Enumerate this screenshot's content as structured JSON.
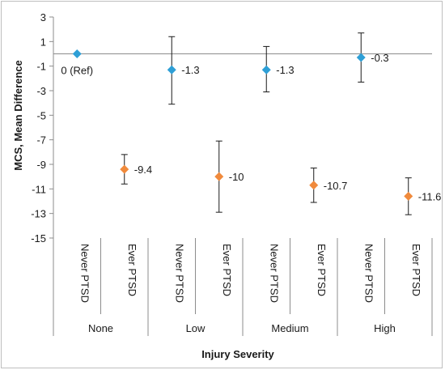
{
  "chart_data": {
    "type": "scatter",
    "xlabel": "Injury Severity",
    "ylabel": "MCS, Mean Difference",
    "ylim": [
      -15,
      3
    ],
    "yticks": [
      3,
      1,
      -1,
      -3,
      -5,
      -7,
      -9,
      -11,
      -13,
      -15
    ],
    "groups": [
      "None",
      "Low",
      "Medium",
      "High"
    ],
    "subcategories": [
      "Never PTSD",
      "Ever PTSD"
    ],
    "grid": false,
    "legend": "none",
    "series": [
      {
        "name": "Never PTSD",
        "color": "#2e9fd6",
        "marker": "diamond",
        "points": [
          {
            "group": "None",
            "value": 0,
            "label": "0 (Ref)",
            "ci": null
          },
          {
            "group": "Low",
            "value": -1.3,
            "label": "-1.3",
            "ci": [
              -4.1,
              1.4
            ]
          },
          {
            "group": "Medium",
            "value": -1.3,
            "label": "-1.3",
            "ci": [
              -3.1,
              0.6
            ]
          },
          {
            "group": "High",
            "value": -0.3,
            "label": "-0.3",
            "ci": [
              -2.3,
              1.7
            ]
          }
        ]
      },
      {
        "name": "Ever PTSD",
        "color": "#f08a3c",
        "marker": "diamond",
        "points": [
          {
            "group": "None",
            "value": -9.4,
            "label": "-9.4",
            "ci": [
              -10.6,
              -8.2
            ]
          },
          {
            "group": "Low",
            "value": -10,
            "label": "-10",
            "ci": [
              -12.9,
              -7.1
            ]
          },
          {
            "group": "Medium",
            "value": -10.7,
            "label": "-10.7",
            "ci": [
              -12.1,
              -9.3
            ]
          },
          {
            "group": "High",
            "value": -11.6,
            "label": "-11.6",
            "ci": [
              -13.1,
              -10.1
            ]
          }
        ]
      }
    ]
  }
}
